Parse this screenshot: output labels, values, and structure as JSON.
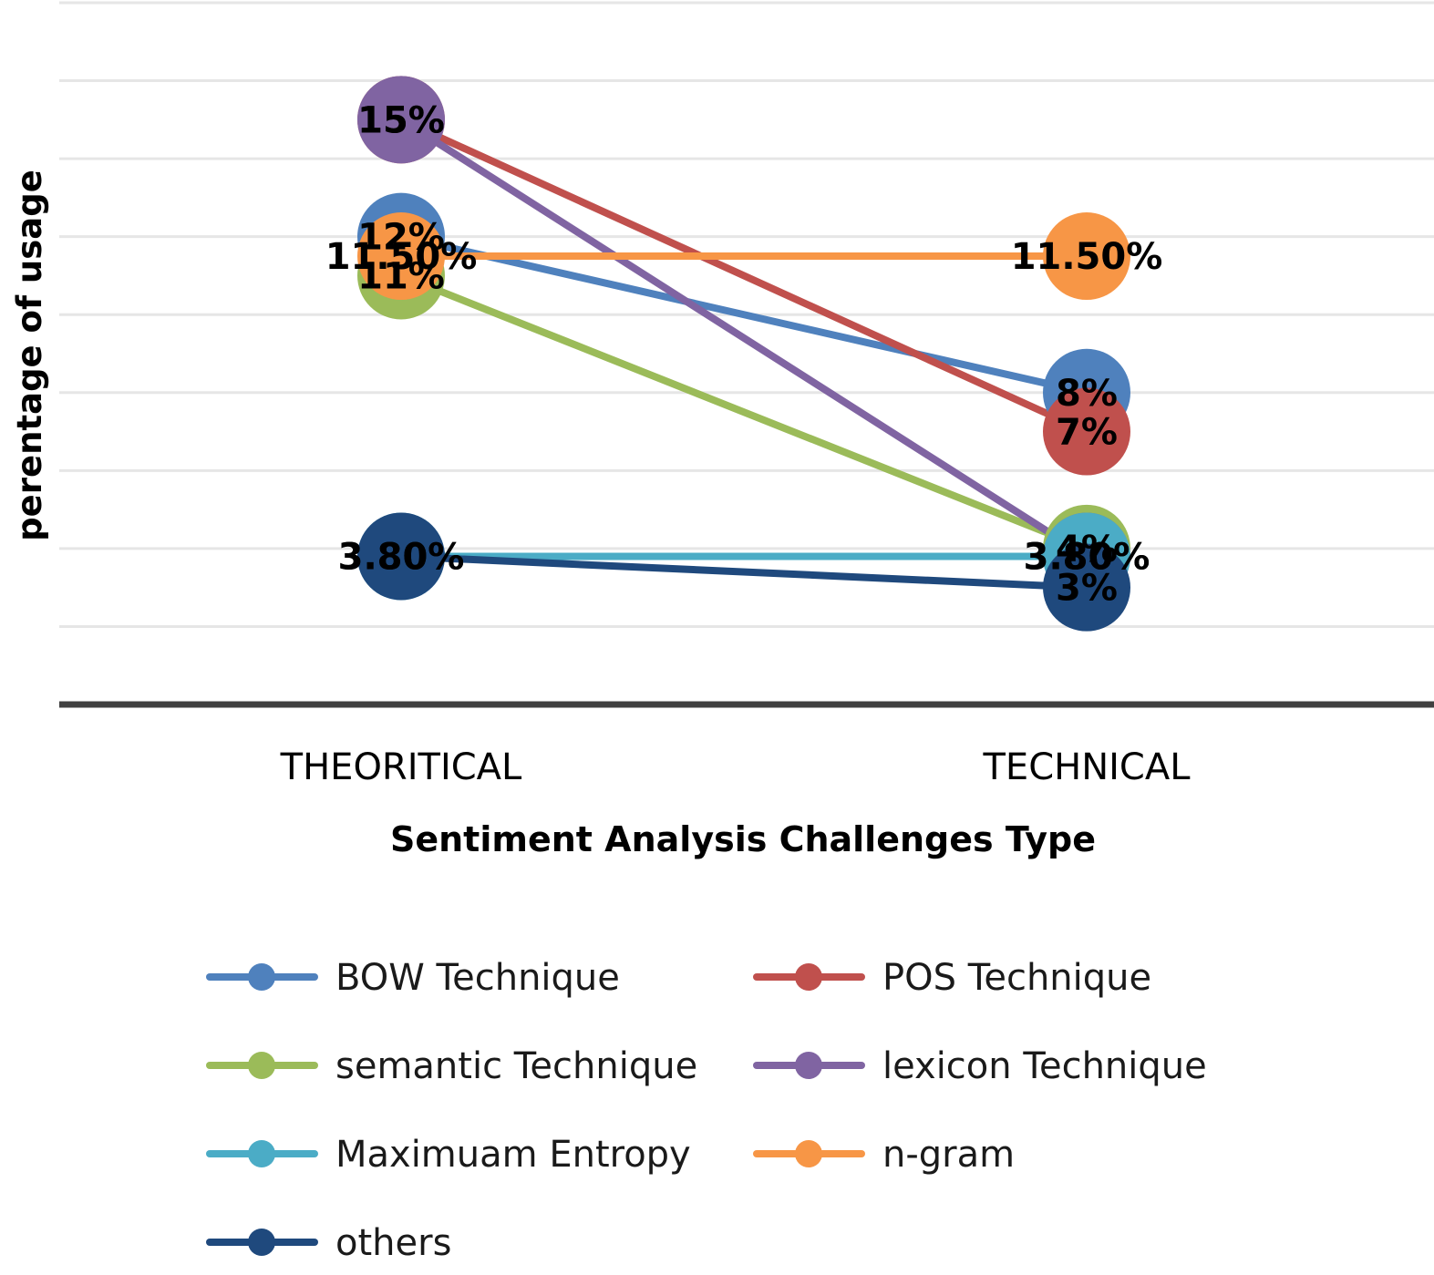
{
  "chart_data": {
    "type": "line",
    "categories": [
      "THEORITICAL",
      "TECHNICAL"
    ],
    "xlabel": "Sentiment Analysis Challenges Type",
    "ylabel": "perentage of usage",
    "ylim": [
      0,
      18
    ],
    "y_grid_step": 2,
    "grid": true,
    "legend_position": "bottom",
    "series": [
      {
        "name": "BOW Technique",
        "color": "#4f81bd",
        "values": [
          12,
          8
        ],
        "labels": [
          "12%",
          "8%"
        ]
      },
      {
        "name": "POS Technique",
        "color": "#c0504d",
        "values": [
          15,
          7
        ],
        "labels": [
          "15%",
          "7%"
        ]
      },
      {
        "name": "semantic Technique",
        "color": "#9bbb59",
        "values": [
          11,
          4
        ],
        "labels": [
          "11%",
          "4%"
        ]
      },
      {
        "name": "lexicon Technique",
        "color": "#8064a2",
        "values": [
          15,
          3.8
        ],
        "labels": [
          "15%",
          "3.80%"
        ]
      },
      {
        "name": "Maximuam Entropy",
        "color": "#4bacc6",
        "values": [
          3.8,
          3.8
        ],
        "labels": [
          "3.80%",
          "3.80%"
        ]
      },
      {
        "name": "n-gram",
        "color": "#f79646",
        "values": [
          11.5,
          11.5
        ],
        "labels": [
          "11.50%",
          "11.50%"
        ]
      },
      {
        "name": "others",
        "color": "#1f497d",
        "values": [
          3.8,
          3
        ],
        "labels": [
          "3.80%",
          "3%"
        ]
      }
    ]
  }
}
